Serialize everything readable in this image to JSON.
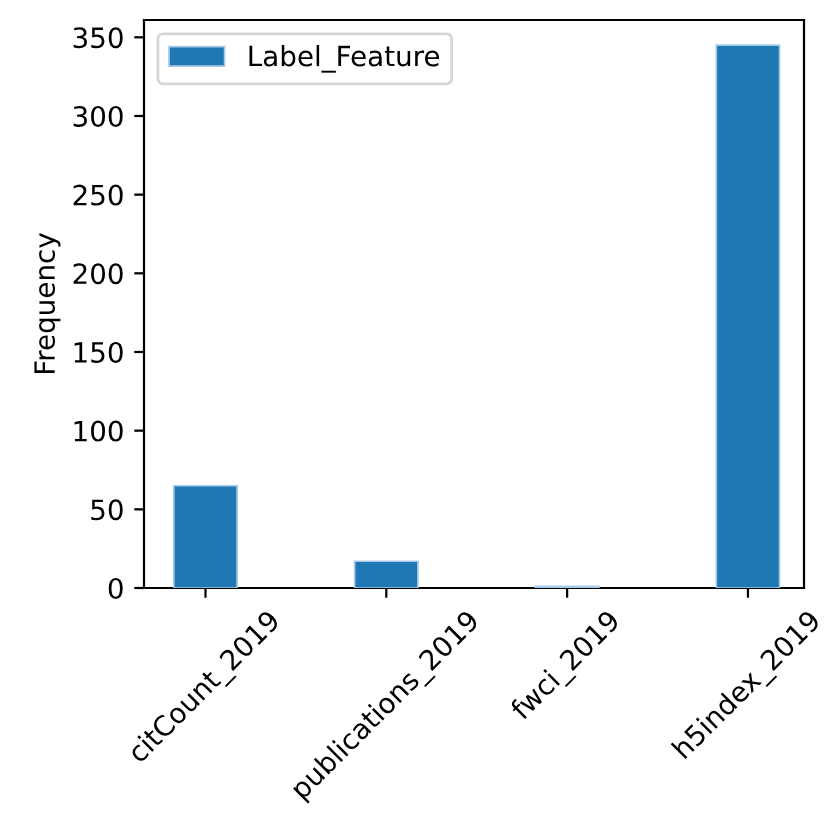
{
  "chart_data": {
    "type": "bar",
    "ylabel": "Frequency",
    "categories": [
      "citCount_2019",
      "publications_2019",
      "fwci_2019",
      "h5index_2019"
    ],
    "series": [
      {
        "name": "Label_Feature",
        "color": "#1f77b4",
        "values": [
          65,
          17,
          1,
          345
        ]
      }
    ],
    "ylim": [
      0,
      361
    ],
    "yticks": [
      0,
      50,
      100,
      150,
      200,
      250,
      300,
      350
    ],
    "grid": false,
    "legend": "top left"
  }
}
